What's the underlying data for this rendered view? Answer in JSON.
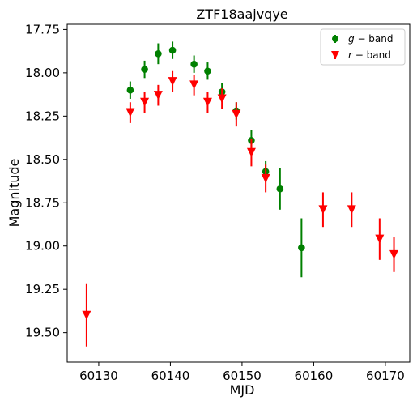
{
  "chart_data": {
    "type": "scatter",
    "title": "ZTF18aajvqye",
    "xlabel": "MJD",
    "ylabel": "Magnitude",
    "xlim": [
      60125.6,
      60173.4
    ],
    "ylim": [
      19.67,
      17.72
    ],
    "y_inverted": true,
    "xticks": [
      60130,
      60140,
      60150,
      60160,
      60170
    ],
    "yticks": [
      17.75,
      18.0,
      18.25,
      18.5,
      18.75,
      19.0,
      19.25,
      19.5
    ],
    "xtick_labels": [
      "60130",
      "60140",
      "60150",
      "60160",
      "60170"
    ],
    "ytick_labels": [
      "17.75",
      "18.00",
      "18.25",
      "18.50",
      "18.75",
      "19.00",
      "19.25",
      "19.50"
    ],
    "grid": false,
    "legend_position": "top-right",
    "series": [
      {
        "name": "g − band",
        "name_italic": "g",
        "name_rest": " − band",
        "color": "#008000",
        "marker": "circle",
        "points": [
          {
            "x": 60134.4,
            "y": 18.1,
            "err": 0.05
          },
          {
            "x": 60136.4,
            "y": 17.98,
            "err": 0.05
          },
          {
            "x": 60138.3,
            "y": 17.89,
            "err": 0.06
          },
          {
            "x": 60140.3,
            "y": 17.87,
            "err": 0.05
          },
          {
            "x": 60143.3,
            "y": 17.95,
            "err": 0.05
          },
          {
            "x": 60145.2,
            "y": 17.99,
            "err": 0.05
          },
          {
            "x": 60147.2,
            "y": 18.11,
            "err": 0.05
          },
          {
            "x": 60149.2,
            "y": 18.22,
            "err": 0.05
          },
          {
            "x": 60151.3,
            "y": 18.39,
            "err": 0.06
          },
          {
            "x": 60153.3,
            "y": 18.57,
            "err": 0.06
          },
          {
            "x": 60155.3,
            "y": 18.67,
            "err": 0.12
          },
          {
            "x": 60158.3,
            "y": 19.01,
            "err": 0.17
          }
        ]
      },
      {
        "name": "r − band",
        "name_italic": "r",
        "name_rest": " − band",
        "color": "#ff0000",
        "marker": "triangle-down",
        "points": [
          {
            "x": 60128.3,
            "y": 19.4,
            "err": 0.18
          },
          {
            "x": 60134.4,
            "y": 18.23,
            "err": 0.06
          },
          {
            "x": 60136.4,
            "y": 18.17,
            "err": 0.06
          },
          {
            "x": 60138.3,
            "y": 18.13,
            "err": 0.06
          },
          {
            "x": 60140.3,
            "y": 18.05,
            "err": 0.06
          },
          {
            "x": 60143.3,
            "y": 18.07,
            "err": 0.06
          },
          {
            "x": 60145.2,
            "y": 18.17,
            "err": 0.06
          },
          {
            "x": 60147.2,
            "y": 18.15,
            "err": 0.06
          },
          {
            "x": 60149.2,
            "y": 18.24,
            "err": 0.07
          },
          {
            "x": 60151.3,
            "y": 18.46,
            "err": 0.08
          },
          {
            "x": 60153.3,
            "y": 18.61,
            "err": 0.08
          },
          {
            "x": 60161.3,
            "y": 18.79,
            "err": 0.1
          },
          {
            "x": 60165.3,
            "y": 18.79,
            "err": 0.1
          },
          {
            "x": 60169.2,
            "y": 18.96,
            "err": 0.12
          },
          {
            "x": 60171.2,
            "y": 19.05,
            "err": 0.1
          }
        ]
      }
    ]
  }
}
